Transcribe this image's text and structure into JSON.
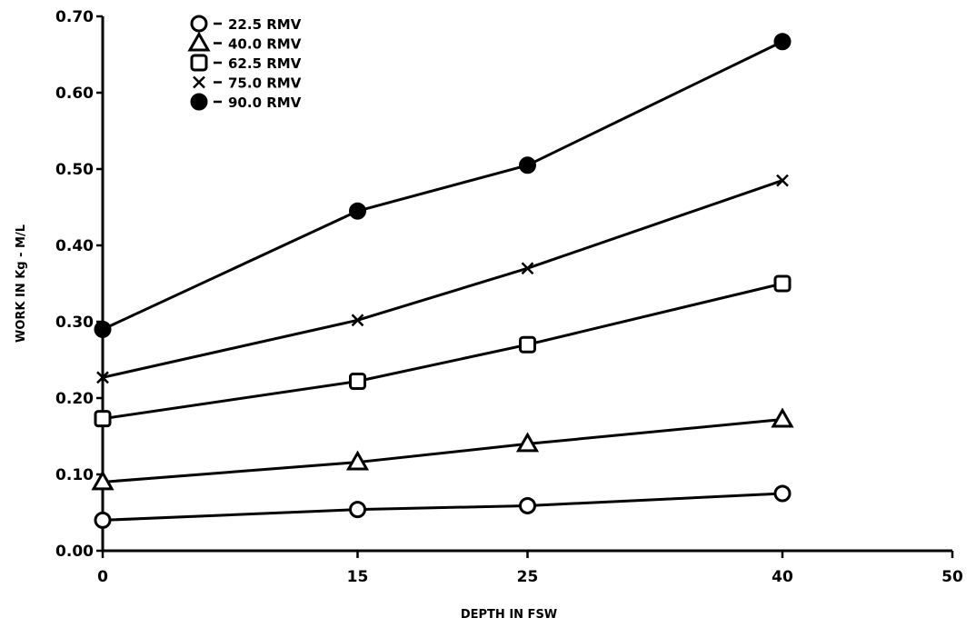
{
  "chart_data": {
    "type": "line",
    "xlabel": "DEPTH IN FSW",
    "ylabel": "WORK IN Kg - M/L",
    "xlim": [
      0,
      50
    ],
    "ylim": [
      0,
      0.7
    ],
    "xticks": [
      0,
      15,
      25,
      40,
      50
    ],
    "yticks": [
      0.0,
      0.1,
      0.2,
      0.3,
      0.4,
      0.5,
      0.6,
      0.7
    ],
    "xtick_labels": [
      "0",
      "15",
      "25",
      "40",
      "50"
    ],
    "ytick_labels": [
      "0.00",
      "0.10",
      "0.20",
      "0.30",
      "0.40",
      "0.50",
      "0.60",
      "0.70"
    ],
    "grid": false,
    "legend_position": "top-left",
    "series": [
      {
        "name": "22.5 RMV",
        "marker": "circle-open",
        "x": [
          0,
          15,
          25,
          40
        ],
        "y": [
          0.04,
          0.054,
          0.059,
          0.075
        ]
      },
      {
        "name": "40.0 RMV",
        "marker": "triangle-open",
        "x": [
          0,
          15,
          25,
          40
        ],
        "y": [
          0.09,
          0.116,
          0.14,
          0.172
        ]
      },
      {
        "name": "62.5 RMV",
        "marker": "square-open",
        "x": [
          0,
          15,
          25,
          40
        ],
        "y": [
          0.173,
          0.222,
          0.27,
          0.35
        ]
      },
      {
        "name": "75.0 RMV",
        "marker": "x",
        "x": [
          0,
          15,
          25,
          40
        ],
        "y": [
          0.227,
          0.302,
          0.37,
          0.485
        ]
      },
      {
        "name": "90.0 RMV",
        "marker": "circle-filled",
        "x": [
          0,
          15,
          25,
          40
        ],
        "y": [
          0.29,
          0.445,
          0.505,
          0.667
        ]
      }
    ]
  }
}
